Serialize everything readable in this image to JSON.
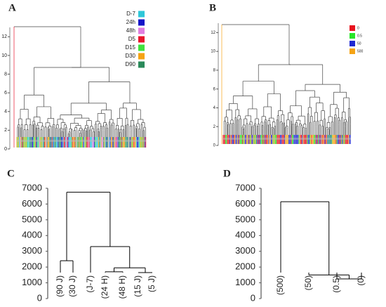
{
  "chart_data": [
    {
      "type": "dendrogram",
      "panel_label": "A",
      "ylim": [
        0,
        13
      ],
      "yticks": [
        0,
        2,
        4,
        6,
        8,
        10,
        12
      ],
      "legend": [
        {
          "name": "D-7",
          "color": "#2ec7d8"
        },
        {
          "name": "24h",
          "color": "#1414c8"
        },
        {
          "name": "48h",
          "color": "#e07ee0"
        },
        {
          "name": "D5",
          "color": "#e8142c"
        },
        {
          "name": "D15",
          "color": "#3ee23e"
        },
        {
          "name": "D30",
          "color": "#f5a314"
        },
        {
          "name": "D90",
          "color": "#2a8a5a"
        }
      ]
    },
    {
      "type": "dendrogram",
      "panel_label": "B",
      "ylim": [
        0,
        13
      ],
      "yticks": [
        0,
        2,
        4,
        6,
        8,
        10,
        12
      ],
      "legend": [
        {
          "name": "0",
          "color": "#e8141e"
        },
        {
          "name": "0.5",
          "color": "#28e628"
        },
        {
          "name": "50",
          "color": "#1e28d2"
        },
        {
          "name": "500",
          "color": "#f5a314"
        }
      ]
    },
    {
      "type": "dendrogram",
      "panel_label": "C",
      "ylim": [
        0,
        7000
      ],
      "yticks": [
        0,
        1000,
        2000,
        3000,
        4000,
        5000,
        6000,
        7000
      ],
      "leaves": [
        "(90 J)",
        "(30 J)",
        "(J-7)",
        "(24 H)",
        "(48 H)",
        "(15 J)",
        "(5 J)"
      ],
      "merges": [
        {
          "children": [
            3,
            4
          ],
          "height": 1700
        },
        {
          "children": [
            5,
            6
          ],
          "height": 1650
        },
        {
          "children": [
            7,
            8
          ],
          "height": 1950
        },
        {
          "children": [
            2,
            9
          ],
          "height": 3300
        },
        {
          "children": [
            0,
            1
          ],
          "height": 2400
        },
        {
          "children": [
            11,
            10
          ],
          "height": 6750
        }
      ]
    },
    {
      "type": "dendrogram",
      "panel_label": "D",
      "ylim": [
        0,
        7000
      ],
      "yticks": [
        0,
        1000,
        2000,
        3000,
        4000,
        5000,
        6000,
        7000
      ],
      "leaves": [
        "(500)",
        "(50)",
        "(0.5)",
        "(0)"
      ],
      "merges": [
        {
          "children": [
            2,
            3
          ],
          "height": 1250
        },
        {
          "children": [
            1,
            4
          ],
          "height": 1500
        },
        {
          "children": [
            0,
            5
          ],
          "height": 6150
        }
      ]
    }
  ]
}
